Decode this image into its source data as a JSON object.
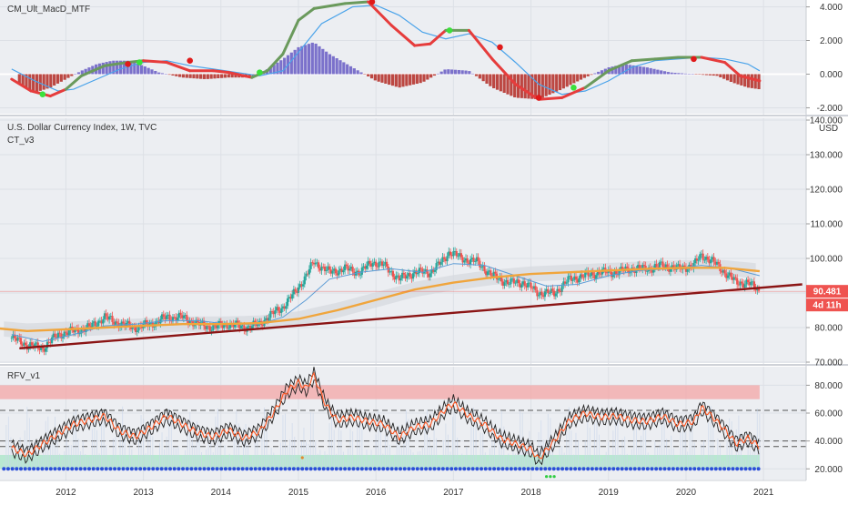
{
  "chart_data": [
    {
      "type": "histogram-line",
      "title": "CM_Ult_MacD_MTF",
      "y_ticks": [
        "4.000",
        "2.000",
        "0.000",
        "-2.000"
      ],
      "y_tick_values": [
        4,
        2,
        0,
        -2
      ],
      "ylim": [
        -2.3,
        4.3
      ],
      "macd": [
        [
          2011.3,
          -0.3
        ],
        [
          2011.55,
          -1.0
        ],
        [
          2011.8,
          -1.3
        ],
        [
          2012.0,
          -0.9
        ],
        [
          2012.2,
          -0.1
        ],
        [
          2012.5,
          0.5
        ],
        [
          2012.8,
          0.7
        ],
        [
          2013.0,
          0.8
        ],
        [
          2013.3,
          0.7
        ],
        [
          2013.6,
          0.2
        ],
        [
          2013.9,
          0.2
        ],
        [
          2014.1,
          0.1
        ],
        [
          2014.4,
          -0.2
        ],
        [
          2014.6,
          0.2
        ],
        [
          2014.8,
          1.2
        ],
        [
          2015.0,
          3.2
        ],
        [
          2015.2,
          3.9
        ],
        [
          2015.6,
          4.2
        ],
        [
          2015.9,
          4.3
        ],
        [
          2016.2,
          2.9
        ],
        [
          2016.5,
          1.7
        ],
        [
          2016.7,
          1.8
        ],
        [
          2016.9,
          2.6
        ],
        [
          2017.2,
          2.6
        ],
        [
          2017.5,
          0.9
        ],
        [
          2017.8,
          -0.6
        ],
        [
          2018.1,
          -1.5
        ],
        [
          2018.4,
          -1.4
        ],
        [
          2018.7,
          -0.8
        ],
        [
          2019.0,
          0.2
        ],
        [
          2019.3,
          0.8
        ],
        [
          2019.6,
          0.9
        ],
        [
          2019.9,
          1.0
        ],
        [
          2020.2,
          1.0
        ],
        [
          2020.5,
          0.7
        ],
        [
          2020.7,
          -0.1
        ],
        [
          2020.95,
          -0.4
        ]
      ],
      "signal": [
        [
          2011.3,
          0.3
        ],
        [
          2011.6,
          -0.4
        ],
        [
          2011.9,
          -1.0
        ],
        [
          2012.1,
          -0.9
        ],
        [
          2012.4,
          -0.3
        ],
        [
          2012.7,
          0.3
        ],
        [
          2013.0,
          0.7
        ],
        [
          2013.3,
          0.8
        ],
        [
          2013.6,
          0.5
        ],
        [
          2013.9,
          0.3
        ],
        [
          2014.2,
          0.1
        ],
        [
          2014.5,
          -0.1
        ],
        [
          2014.8,
          0.2
        ],
        [
          2015.0,
          1.3
        ],
        [
          2015.3,
          3.0
        ],
        [
          2015.7,
          4.0
        ],
        [
          2016.0,
          4.1
        ],
        [
          2016.3,
          3.5
        ],
        [
          2016.6,
          2.5
        ],
        [
          2016.9,
          2.1
        ],
        [
          2017.2,
          2.4
        ],
        [
          2017.5,
          1.9
        ],
        [
          2017.8,
          0.7
        ],
        [
          2018.1,
          -0.6
        ],
        [
          2018.4,
          -1.2
        ],
        [
          2018.7,
          -1.0
        ],
        [
          2019.0,
          -0.4
        ],
        [
          2019.3,
          0.4
        ],
        [
          2019.6,
          0.8
        ],
        [
          2019.9,
          0.9
        ],
        [
          2020.2,
          1.0
        ],
        [
          2020.5,
          0.9
        ],
        [
          2020.8,
          0.6
        ],
        [
          2020.95,
          0.2
        ]
      ],
      "histogram": [
        [
          2011.4,
          -0.6
        ],
        [
          2011.6,
          -1.1
        ],
        [
          2011.8,
          -0.8
        ],
        [
          2012.0,
          -0.3
        ],
        [
          2012.2,
          0.2
        ],
        [
          2012.4,
          0.6
        ],
        [
          2012.6,
          0.8
        ],
        [
          2012.8,
          0.8
        ],
        [
          2013.0,
          0.5
        ],
        [
          2013.2,
          0.1
        ],
        [
          2013.5,
          -0.2
        ],
        [
          2013.8,
          -0.3
        ],
        [
          2014.1,
          -0.2
        ],
        [
          2014.4,
          -0.2
        ],
        [
          2014.6,
          0.3
        ],
        [
          2014.8,
          0.9
        ],
        [
          2015.0,
          1.6
        ],
        [
          2015.2,
          1.9
        ],
        [
          2015.4,
          1.2
        ],
        [
          2015.7,
          0.4
        ],
        [
          2016.0,
          -0.4
        ],
        [
          2016.3,
          -0.8
        ],
        [
          2016.6,
          -0.5
        ],
        [
          2016.9,
          0.3
        ],
        [
          2017.2,
          0.2
        ],
        [
          2017.5,
          -0.8
        ],
        [
          2017.8,
          -1.4
        ],
        [
          2018.1,
          -1.5
        ],
        [
          2018.4,
          -0.9
        ],
        [
          2018.7,
          -0.2
        ],
        [
          2019.0,
          0.4
        ],
        [
          2019.2,
          0.6
        ],
        [
          2019.5,
          0.4
        ],
        [
          2019.8,
          0.1
        ],
        [
          2020.1,
          0.0
        ],
        [
          2020.4,
          -0.1
        ],
        [
          2020.6,
          -0.5
        ],
        [
          2020.8,
          -0.8
        ],
        [
          2020.95,
          -0.9
        ]
      ],
      "cross_points": [
        [
          2011.7,
          -1.2,
          "green"
        ],
        [
          2012.8,
          0.6,
          "red"
        ],
        [
          2012.95,
          0.7,
          "green"
        ],
        [
          2013.6,
          0.8,
          "red"
        ],
        [
          2014.5,
          0.1,
          "green"
        ],
        [
          2015.95,
          4.3,
          "red"
        ],
        [
          2016.95,
          2.6,
          "green"
        ],
        [
          2017.6,
          1.6,
          "red"
        ],
        [
          2018.1,
          -1.4,
          "red"
        ],
        [
          2018.55,
          -0.8,
          "green"
        ],
        [
          2020.1,
          0.9,
          "red"
        ]
      ]
    },
    {
      "type": "candlestick",
      "title": "U.S. Dollar Currency Index, 1W, TVC",
      "subtitle": "CT_v3",
      "currency": "USD",
      "y_ticks": [
        "140.000",
        "130.000",
        "120.000",
        "110.000",
        "100.000",
        "90.000",
        "80.000",
        "70.000"
      ],
      "y_tick_values": [
        140,
        130,
        120,
        110,
        100,
        90,
        80,
        70
      ],
      "ylim": [
        70,
        140
      ],
      "price_label": "90.481",
      "price_value": 90.481,
      "countdown_label": "4d 11h",
      "close_series": [
        [
          2011.3,
          77
        ],
        [
          2011.5,
          75
        ],
        [
          2011.7,
          74
        ],
        [
          2011.9,
          78
        ],
        [
          2012.1,
          79
        ],
        [
          2012.3,
          80
        ],
        [
          2012.5,
          83
        ],
        [
          2012.7,
          81
        ],
        [
          2012.9,
          80
        ],
        [
          2013.1,
          81
        ],
        [
          2013.3,
          83
        ],
        [
          2013.5,
          83
        ],
        [
          2013.7,
          81
        ],
        [
          2013.9,
          80
        ],
        [
          2014.1,
          81
        ],
        [
          2014.3,
          80
        ],
        [
          2014.5,
          81
        ],
        [
          2014.6,
          83
        ],
        [
          2014.8,
          86
        ],
        [
          2014.95,
          90
        ],
        [
          2015.1,
          95
        ],
        [
          2015.2,
          99
        ],
        [
          2015.4,
          96
        ],
        [
          2015.6,
          97
        ],
        [
          2015.8,
          96
        ],
        [
          2015.95,
          99
        ],
        [
          2016.1,
          98
        ],
        [
          2016.3,
          94
        ],
        [
          2016.5,
          96
        ],
        [
          2016.7,
          96
        ],
        [
          2016.85,
          99
        ],
        [
          2016.95,
          102
        ],
        [
          2017.1,
          100
        ],
        [
          2017.3,
          99
        ],
        [
          2017.5,
          95
        ],
        [
          2017.7,
          93
        ],
        [
          2017.9,
          93
        ],
        [
          2018.1,
          90
        ],
        [
          2018.3,
          90
        ],
        [
          2018.5,
          94
        ],
        [
          2018.7,
          95
        ],
        [
          2018.9,
          96
        ],
        [
          2019.1,
          96
        ],
        [
          2019.3,
          97
        ],
        [
          2019.5,
          97
        ],
        [
          2019.7,
          98
        ],
        [
          2019.9,
          97
        ],
        [
          2020.1,
          98
        ],
        [
          2020.2,
          101
        ],
        [
          2020.35,
          99
        ],
        [
          2020.5,
          96
        ],
        [
          2020.65,
          93
        ],
        [
          2020.8,
          93
        ],
        [
          2020.95,
          90.5
        ]
      ],
      "ma_long": [
        [
          2011.0,
          80
        ],
        [
          2011.5,
          79
        ],
        [
          2012.0,
          79.5
        ],
        [
          2012.5,
          80
        ],
        [
          2013.0,
          80.5
        ],
        [
          2013.5,
          81
        ],
        [
          2014.0,
          81
        ],
        [
          2014.5,
          81.3
        ],
        [
          2015.0,
          82.5
        ],
        [
          2015.5,
          85
        ],
        [
          2016.0,
          88
        ],
        [
          2016.5,
          91
        ],
        [
          2017.0,
          93
        ],
        [
          2017.5,
          94.5
        ],
        [
          2018.0,
          95.5
        ],
        [
          2018.5,
          96
        ],
        [
          2019.0,
          96.5
        ],
        [
          2019.5,
          97
        ],
        [
          2020.0,
          97.3
        ],
        [
          2020.5,
          97.3
        ],
        [
          2020.95,
          96.3
        ]
      ],
      "ma_short": [
        [
          2011.3,
          78
        ],
        [
          2011.7,
          76
        ],
        [
          2012.1,
          78
        ],
        [
          2012.5,
          80.5
        ],
        [
          2012.9,
          81
        ],
        [
          2013.3,
          82
        ],
        [
          2013.7,
          82
        ],
        [
          2014.1,
          81
        ],
        [
          2014.5,
          81
        ],
        [
          2014.8,
          83
        ],
        [
          2015.1,
          88
        ],
        [
          2015.4,
          94
        ],
        [
          2015.8,
          96
        ],
        [
          2016.2,
          97
        ],
        [
          2016.6,
          96
        ],
        [
          2017.0,
          98.5
        ],
        [
          2017.4,
          98
        ],
        [
          2017.8,
          95
        ],
        [
          2018.2,
          92
        ],
        [
          2018.6,
          92.5
        ],
        [
          2019.0,
          95
        ],
        [
          2019.4,
          96.5
        ],
        [
          2019.8,
          97
        ],
        [
          2020.2,
          98
        ],
        [
          2020.6,
          97
        ],
        [
          2020.95,
          95
        ]
      ],
      "trendline": [
        [
          2011.4,
          74
        ],
        [
          2021.5,
          92.5
        ]
      ]
    },
    {
      "type": "oscillator",
      "title": "RFV_v1",
      "y_ticks": [
        "80.000",
        "60.000",
        "40.000",
        "20.000"
      ],
      "y_tick_values": [
        80,
        60,
        40,
        20
      ],
      "ylim": [
        13,
        92
      ],
      "dashed_levels": [
        62,
        40,
        36
      ],
      "overbought_band": [
        70,
        80
      ],
      "oversold_band": [
        20,
        30
      ],
      "values": [
        [
          2011.3,
          35
        ],
        [
          2011.5,
          30
        ],
        [
          2011.7,
          38
        ],
        [
          2011.9,
          45
        ],
        [
          2012.1,
          52
        ],
        [
          2012.3,
          55
        ],
        [
          2012.5,
          58
        ],
        [
          2012.7,
          47
        ],
        [
          2012.9,
          43
        ],
        [
          2013.1,
          50
        ],
        [
          2013.3,
          58
        ],
        [
          2013.5,
          52
        ],
        [
          2013.7,
          46
        ],
        [
          2013.9,
          43
        ],
        [
          2014.1,
          48
        ],
        [
          2014.3,
          42
        ],
        [
          2014.5,
          47
        ],
        [
          2014.7,
          62
        ],
        [
          2014.85,
          76
        ],
        [
          2015.0,
          82
        ],
        [
          2015.1,
          78
        ],
        [
          2015.2,
          87
        ],
        [
          2015.35,
          66
        ],
        [
          2015.5,
          55
        ],
        [
          2015.7,
          57
        ],
        [
          2015.9,
          54
        ],
        [
          2016.1,
          52
        ],
        [
          2016.3,
          43
        ],
        [
          2016.5,
          50
        ],
        [
          2016.7,
          52
        ],
        [
          2016.9,
          63
        ],
        [
          2017.0,
          67
        ],
        [
          2017.2,
          58
        ],
        [
          2017.4,
          52
        ],
        [
          2017.6,
          42
        ],
        [
          2017.8,
          38
        ],
        [
          2018.0,
          34
        ],
        [
          2018.1,
          27
        ],
        [
          2018.3,
          40
        ],
        [
          2018.5,
          55
        ],
        [
          2018.7,
          60
        ],
        [
          2018.9,
          57
        ],
        [
          2019.1,
          58
        ],
        [
          2019.3,
          55
        ],
        [
          2019.5,
          54
        ],
        [
          2019.7,
          58
        ],
        [
          2019.9,
          52
        ],
        [
          2020.1,
          54
        ],
        [
          2020.2,
          64
        ],
        [
          2020.35,
          57
        ],
        [
          2020.5,
          48
        ],
        [
          2020.65,
          38
        ],
        [
          2020.8,
          42
        ],
        [
          2020.95,
          36
        ]
      ]
    }
  ],
  "x_axis": {
    "ticks": [
      "2012",
      "2013",
      "2014",
      "2015",
      "2016",
      "2017",
      "2018",
      "2019",
      "2020",
      "2021"
    ],
    "tick_values": [
      2012,
      2013,
      2014,
      2015,
      2016,
      2017,
      2018,
      2019,
      2020,
      2021
    ],
    "xlim": [
      2011.15,
      2021.55
    ]
  },
  "colors": {
    "macd_up": "#6a9a5c",
    "macd_down": "#e63c3c",
    "signal": "#4aa3ea",
    "hist_pos": "#6f63c7",
    "hist_neg": "#b7342f",
    "ma_long": "#f0a53c",
    "ma_short": "#5b9bd5",
    "trend": "#8b1515",
    "price_badge": "#ef5350",
    "bull": "#26a69a",
    "bear": "#ef5350",
    "osc": "#222222",
    "osc_fast": "#ff5722",
    "band_red": "#f4a6a6",
    "band_green": "#a8e6c6",
    "dots": "#2b4fd8"
  }
}
